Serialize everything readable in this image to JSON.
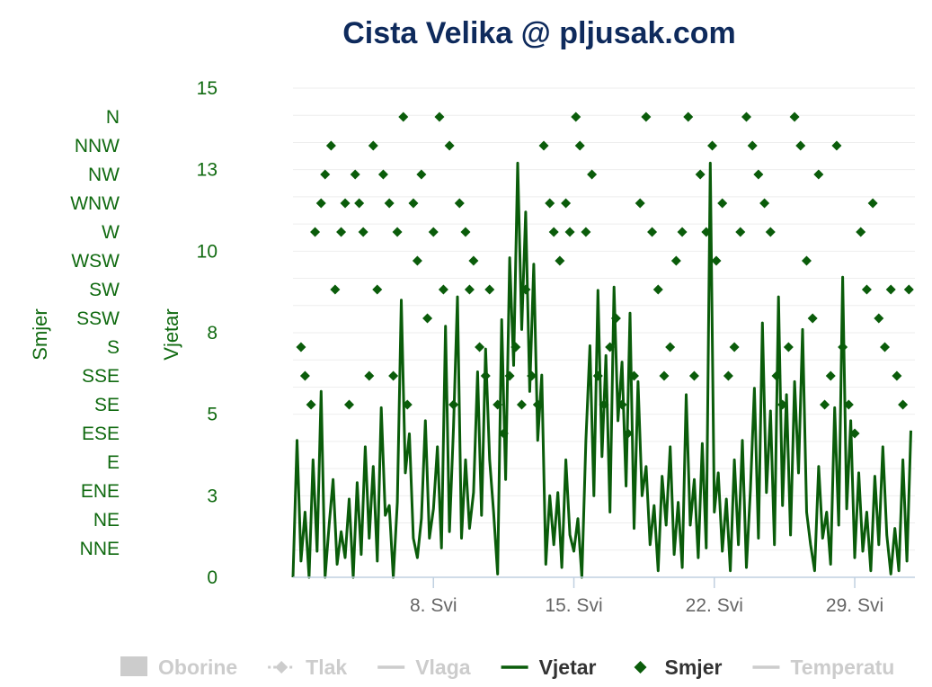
{
  "title": "Cista Velika @ pljusak.com",
  "colors": {
    "wind": "#0a5c0a",
    "axis_text": "#106a10",
    "title": "#0e2a5c",
    "grid": "#eeeeee",
    "legend_inactive": "#cccccc",
    "legend_active": "#333333"
  },
  "legend": [
    {
      "label": "Oborine",
      "active": false,
      "symbol": "box"
    },
    {
      "label": "Tlak",
      "active": false,
      "symbol": "dashdiamond"
    },
    {
      "label": "Vlaga",
      "active": false,
      "symbol": "line"
    },
    {
      "label": "Vjetar",
      "active": true,
      "symbol": "line"
    },
    {
      "label": "Smjer",
      "active": true,
      "symbol": "diamond"
    },
    {
      "label": "Temperatu",
      "active": false,
      "symbol": "line"
    }
  ],
  "chart_data": {
    "type": "line",
    "title": "Cista Velika @ pljusak.com",
    "x_ticks": [
      "8. Svi",
      "15. Svi",
      "22. Svi",
      "29. Svi"
    ],
    "x_tick_days": [
      8,
      15,
      22,
      29
    ],
    "x_range_days": [
      1,
      32
    ],
    "wind_axis": {
      "label": "Vjetar",
      "ticks": [
        "0",
        "3",
        "5",
        "8",
        "10",
        "13",
        "15"
      ],
      "ylim": [
        0,
        15
      ]
    },
    "direction_axis": {
      "label": "Smjer",
      "ticks": [
        "N",
        "NNW",
        "NW",
        "WNW",
        "W",
        "WSW",
        "SW",
        "SSW",
        "S",
        "SSE",
        "SE",
        "ESE",
        "E",
        "ENE",
        "NE",
        "NNE"
      ]
    },
    "series": [
      {
        "name": "Vjetar",
        "type": "line",
        "points": [
          [
            1.0,
            0
          ],
          [
            1.2,
            4.2
          ],
          [
            1.4,
            0.5
          ],
          [
            1.6,
            2.0
          ],
          [
            1.8,
            0
          ],
          [
            2.0,
            3.6
          ],
          [
            2.2,
            0.8
          ],
          [
            2.4,
            5.7
          ],
          [
            2.6,
            0
          ],
          [
            2.8,
            1.6
          ],
          [
            3.0,
            3.0
          ],
          [
            3.2,
            0.4
          ],
          [
            3.4,
            1.4
          ],
          [
            3.6,
            0.6
          ],
          [
            3.8,
            2.4
          ],
          [
            4.0,
            0
          ],
          [
            4.2,
            2.9
          ],
          [
            4.4,
            0.7
          ],
          [
            4.6,
            4.0
          ],
          [
            4.8,
            1.2
          ],
          [
            5.0,
            3.4
          ],
          [
            5.2,
            0.5
          ],
          [
            5.4,
            5.2
          ],
          [
            5.6,
            1.9
          ],
          [
            5.8,
            2.2
          ],
          [
            6.0,
            0
          ],
          [
            6.2,
            2.3
          ],
          [
            6.4,
            8.5
          ],
          [
            6.6,
            3.2
          ],
          [
            6.8,
            4.4
          ],
          [
            7.0,
            1.2
          ],
          [
            7.2,
            0.6
          ],
          [
            7.4,
            1.8
          ],
          [
            7.6,
            4.8
          ],
          [
            7.8,
            1.2
          ],
          [
            8.0,
            2.1
          ],
          [
            8.2,
            4.0
          ],
          [
            8.4,
            0.9
          ],
          [
            8.6,
            7.7
          ],
          [
            8.8,
            1.4
          ],
          [
            9.0,
            4.6
          ],
          [
            9.2,
            8.6
          ],
          [
            9.4,
            1.2
          ],
          [
            9.6,
            3.6
          ],
          [
            9.8,
            1.5
          ],
          [
            10.0,
            2.6
          ],
          [
            10.2,
            6.3
          ],
          [
            10.4,
            1.9
          ],
          [
            10.6,
            7.0
          ],
          [
            10.8,
            3.6
          ],
          [
            11.0,
            2.0
          ],
          [
            11.2,
            0.1
          ],
          [
            11.4,
            7.9
          ],
          [
            11.6,
            3.0
          ],
          [
            11.8,
            9.8
          ],
          [
            12.0,
            6.5
          ],
          [
            12.2,
            12.7
          ],
          [
            12.4,
            7.6
          ],
          [
            12.6,
            11.2
          ],
          [
            12.8,
            5.7
          ],
          [
            13.0,
            9.6
          ],
          [
            13.2,
            4.2
          ],
          [
            13.4,
            6.2
          ],
          [
            13.6,
            0.4
          ],
          [
            13.8,
            2.5
          ],
          [
            14.0,
            1.0
          ],
          [
            14.2,
            2.6
          ],
          [
            14.4,
            0.3
          ],
          [
            14.6,
            3.6
          ],
          [
            14.8,
            1.3
          ],
          [
            15.0,
            0.8
          ],
          [
            15.2,
            1.8
          ],
          [
            15.4,
            0
          ],
          [
            15.6,
            4.2
          ],
          [
            15.8,
            7.1
          ],
          [
            16.0,
            2.5
          ],
          [
            16.2,
            8.8
          ],
          [
            16.4,
            3.7
          ],
          [
            16.6,
            6.8
          ],
          [
            16.8,
            2.0
          ],
          [
            17.0,
            8.9
          ],
          [
            17.2,
            4.8
          ],
          [
            17.4,
            6.6
          ],
          [
            17.6,
            2.8
          ],
          [
            17.8,
            8.1
          ],
          [
            18.0,
            1.5
          ],
          [
            18.2,
            6.0
          ],
          [
            18.4,
            2.5
          ],
          [
            18.6,
            3.4
          ],
          [
            18.8,
            1.0
          ],
          [
            19.0,
            2.2
          ],
          [
            19.2,
            0.2
          ],
          [
            19.4,
            3.1
          ],
          [
            19.6,
            1.6
          ],
          [
            19.8,
            4.0
          ],
          [
            20.0,
            0.7
          ],
          [
            20.2,
            2.3
          ],
          [
            20.4,
            0.3
          ],
          [
            20.6,
            5.6
          ],
          [
            20.8,
            1.6
          ],
          [
            21.0,
            3.0
          ],
          [
            21.2,
            0.6
          ],
          [
            21.4,
            4.1
          ],
          [
            21.6,
            0.9
          ],
          [
            21.8,
            12.7
          ],
          [
            22.0,
            2.0
          ],
          [
            22.2,
            3.2
          ],
          [
            22.4,
            0.8
          ],
          [
            22.6,
            2.4
          ],
          [
            22.8,
            0.2
          ],
          [
            23.0,
            3.6
          ],
          [
            23.2,
            1.0
          ],
          [
            23.4,
            4.2
          ],
          [
            23.6,
            0.3
          ],
          [
            23.8,
            2.7
          ],
          [
            24.0,
            5.8
          ],
          [
            24.2,
            1.2
          ],
          [
            24.4,
            7.8
          ],
          [
            24.6,
            2.6
          ],
          [
            24.8,
            5.1
          ],
          [
            25.0,
            1.0
          ],
          [
            25.2,
            8.6
          ],
          [
            25.4,
            2.2
          ],
          [
            25.6,
            5.6
          ],
          [
            25.8,
            1.3
          ],
          [
            26.0,
            6.0
          ],
          [
            26.2,
            3.2
          ],
          [
            26.4,
            7.6
          ],
          [
            26.6,
            2.0
          ],
          [
            26.8,
            1.0
          ],
          [
            27.0,
            0.2
          ],
          [
            27.2,
            3.4
          ],
          [
            27.4,
            1.2
          ],
          [
            27.6,
            2.0
          ],
          [
            27.8,
            0.4
          ],
          [
            28.0,
            5.2
          ],
          [
            28.2,
            1.6
          ],
          [
            28.4,
            9.2
          ],
          [
            28.6,
            2.1
          ],
          [
            28.8,
            4.8
          ],
          [
            29.0,
            0.6
          ],
          [
            29.2,
            3.2
          ],
          [
            29.4,
            0.8
          ],
          [
            29.6,
            2.0
          ],
          [
            29.8,
            0.2
          ],
          [
            30.0,
            3.1
          ],
          [
            30.2,
            1.0
          ],
          [
            30.4,
            4.0
          ],
          [
            30.6,
            1.3
          ],
          [
            30.8,
            0.1
          ],
          [
            31.0,
            1.5
          ],
          [
            31.2,
            0.2
          ],
          [
            31.4,
            3.6
          ],
          [
            31.6,
            0.5
          ],
          [
            31.8,
            4.5
          ]
        ]
      },
      {
        "name": "Smjer",
        "type": "scatter",
        "points": [
          [
            1.4,
            "S"
          ],
          [
            1.6,
            "SSE"
          ],
          [
            1.9,
            "SE"
          ],
          [
            2.1,
            "W"
          ],
          [
            2.4,
            "WNW"
          ],
          [
            2.6,
            "NW"
          ],
          [
            2.9,
            "NNW"
          ],
          [
            3.1,
            "SW"
          ],
          [
            3.4,
            "W"
          ],
          [
            3.6,
            "WNW"
          ],
          [
            3.8,
            "SE"
          ],
          [
            4.1,
            "NW"
          ],
          [
            4.3,
            "WNW"
          ],
          [
            4.5,
            "W"
          ],
          [
            4.8,
            "SSE"
          ],
          [
            5.0,
            "NNW"
          ],
          [
            5.2,
            "SW"
          ],
          [
            5.5,
            "NW"
          ],
          [
            5.8,
            "WNW"
          ],
          [
            6.0,
            "SSE"
          ],
          [
            6.2,
            "W"
          ],
          [
            6.5,
            "N"
          ],
          [
            6.7,
            "SE"
          ],
          [
            7.0,
            "WNW"
          ],
          [
            7.2,
            "WSW"
          ],
          [
            7.4,
            "NW"
          ],
          [
            7.7,
            "SSW"
          ],
          [
            8.0,
            "W"
          ],
          [
            8.3,
            "N"
          ],
          [
            8.5,
            "SW"
          ],
          [
            8.8,
            "NNW"
          ],
          [
            9.0,
            "SE"
          ],
          [
            9.3,
            "WNW"
          ],
          [
            9.6,
            "W"
          ],
          [
            9.8,
            "SW"
          ],
          [
            10.0,
            "WSW"
          ],
          [
            10.3,
            "S"
          ],
          [
            10.6,
            "SSE"
          ],
          [
            10.8,
            "SW"
          ],
          [
            11.2,
            "SE"
          ],
          [
            11.5,
            "ESE"
          ],
          [
            11.8,
            "SSE"
          ],
          [
            12.1,
            "S"
          ],
          [
            12.4,
            "SE"
          ],
          [
            12.6,
            "SW"
          ],
          [
            12.9,
            "SSE"
          ],
          [
            13.2,
            "SE"
          ],
          [
            13.5,
            "NNW"
          ],
          [
            13.8,
            "WNW"
          ],
          [
            14.0,
            "W"
          ],
          [
            14.3,
            "WSW"
          ],
          [
            14.6,
            "WNW"
          ],
          [
            14.8,
            "W"
          ],
          [
            15.1,
            "N"
          ],
          [
            15.3,
            "NNW"
          ],
          [
            15.6,
            "W"
          ],
          [
            15.9,
            "NW"
          ],
          [
            16.2,
            "SSE"
          ],
          [
            16.5,
            "SE"
          ],
          [
            16.8,
            "S"
          ],
          [
            17.1,
            "SSW"
          ],
          [
            17.4,
            "SE"
          ],
          [
            17.7,
            "ESE"
          ],
          [
            18.0,
            "SSE"
          ],
          [
            18.3,
            "WNW"
          ],
          [
            18.6,
            "N"
          ],
          [
            18.9,
            "W"
          ],
          [
            19.2,
            "SW"
          ],
          [
            19.5,
            "SSE"
          ],
          [
            19.8,
            "S"
          ],
          [
            20.1,
            "WSW"
          ],
          [
            20.4,
            "W"
          ],
          [
            20.7,
            "N"
          ],
          [
            21.0,
            "SSE"
          ],
          [
            21.3,
            "NW"
          ],
          [
            21.6,
            "W"
          ],
          [
            21.9,
            "NNW"
          ],
          [
            22.1,
            "WSW"
          ],
          [
            22.4,
            "WNW"
          ],
          [
            22.7,
            "SSE"
          ],
          [
            23.0,
            "S"
          ],
          [
            23.3,
            "W"
          ],
          [
            23.6,
            "N"
          ],
          [
            23.9,
            "NNW"
          ],
          [
            24.2,
            "NW"
          ],
          [
            24.5,
            "WNW"
          ],
          [
            24.8,
            "W"
          ],
          [
            25.1,
            "SSE"
          ],
          [
            25.4,
            "SE"
          ],
          [
            25.7,
            "S"
          ],
          [
            26.0,
            "N"
          ],
          [
            26.3,
            "NNW"
          ],
          [
            26.6,
            "WSW"
          ],
          [
            26.9,
            "SSW"
          ],
          [
            27.2,
            "NW"
          ],
          [
            27.5,
            "SE"
          ],
          [
            27.8,
            "SSE"
          ],
          [
            28.1,
            "NNW"
          ],
          [
            28.4,
            "S"
          ],
          [
            28.7,
            "SE"
          ],
          [
            29.0,
            "ESE"
          ],
          [
            29.3,
            "W"
          ],
          [
            29.6,
            "SW"
          ],
          [
            29.9,
            "WNW"
          ],
          [
            30.2,
            "SSW"
          ],
          [
            30.5,
            "S"
          ],
          [
            30.8,
            "SW"
          ],
          [
            31.1,
            "SSE"
          ],
          [
            31.4,
            "SE"
          ],
          [
            31.7,
            "SW"
          ]
        ]
      }
    ]
  }
}
